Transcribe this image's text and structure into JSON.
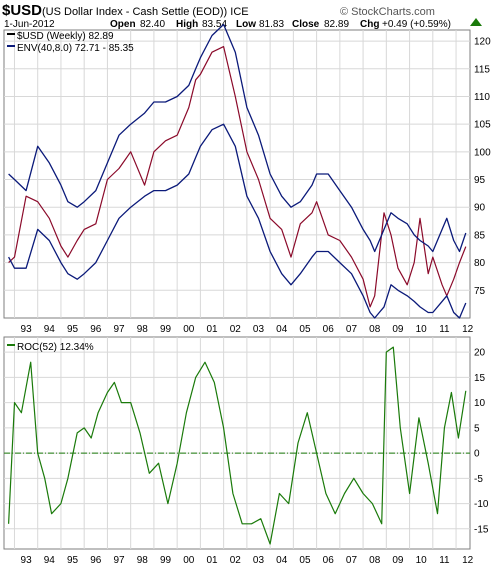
{
  "header": {
    "symbol": "$USD",
    "description": "(US Dollar Index - Cash Settle (EOD)) ICE",
    "watermark": "© StockCharts.com",
    "date": "1-Jun-2012",
    "open_label": "Open",
    "open_value": "82.40",
    "high_label": "High",
    "high_value": "83.54",
    "low_label": "Low",
    "low_value": "81.83",
    "close_label": "Close",
    "close_value": "82.89",
    "chg_label": "Chg",
    "chg_value": "+0.49 (+0.59%)"
  },
  "colors": {
    "price": "#8b0a2a",
    "envelope": "#0b1a7a",
    "roc": "#1a7a0a",
    "grid": "#d8d8d8",
    "border": "#7f7f7f",
    "zero_line": "#1a7a0a"
  },
  "chart_data": [
    {
      "type": "line",
      "title": "",
      "legend": [
        {
          "label": "$USD (Weekly) 82.89",
          "color": "#000000"
        },
        {
          "label": "ENV(40,8.0) 72.71 - 85.35",
          "color": "#0b1a7a"
        }
      ],
      "legend_placement": "top-left",
      "x_ticks": [
        "93",
        "94",
        "95",
        "96",
        "97",
        "98",
        "99",
        "00",
        "01",
        "02",
        "03",
        "04",
        "05",
        "06",
        "07",
        "08",
        "09",
        "10",
        "11",
        "12"
      ],
      "ylim": [
        70,
        122
      ],
      "y_ticks": [
        75,
        80,
        85,
        90,
        95,
        100,
        105,
        110,
        115,
        120
      ],
      "grid": true,
      "x_years": [
        1992.75,
        1993.0,
        1993.5,
        1994.0,
        1994.5,
        1995.0,
        1995.3,
        1995.7,
        1996.0,
        1996.5,
        1997.0,
        1997.5,
        1998.0,
        1998.6,
        1999.0,
        1999.5,
        2000.0,
        2000.5,
        2000.8,
        2001.0,
        2001.5,
        2002.0,
        2002.5,
        2003.0,
        2003.5,
        2004.0,
        2004.5,
        2004.9,
        2005.3,
        2005.8,
        2006.0,
        2006.5,
        2007.0,
        2007.5,
        2008.0,
        2008.3,
        2008.5,
        2008.9,
        2009.2,
        2009.5,
        2009.9,
        2010.2,
        2010.45,
        2010.8,
        2011.0,
        2011.4,
        2011.6,
        2011.9,
        2012.15,
        2012.42
      ],
      "series": [
        {
          "name": "$USD (Weekly)",
          "values": [
            80,
            81,
            92,
            91,
            88,
            83,
            81,
            84,
            86,
            87,
            95,
            97,
            100,
            94,
            100,
            102,
            103,
            108,
            113,
            114,
            118,
            119,
            110,
            100,
            95,
            88,
            86,
            81,
            87,
            89,
            91,
            85,
            84,
            81,
            77,
            72,
            74,
            89,
            85,
            79,
            76,
            80,
            88,
            78,
            81,
            76,
            74,
            77,
            80,
            82.89
          ]
        },
        {
          "name": "ENV upper",
          "values": [
            96,
            95,
            93,
            101,
            98,
            94,
            91,
            90,
            91,
            93,
            98,
            103,
            105,
            107,
            109,
            109,
            110,
            112,
            115,
            117,
            121,
            123,
            118,
            108,
            103,
            96,
            92,
            90,
            91,
            94,
            96,
            96,
            93,
            90,
            86,
            84,
            82,
            86,
            89,
            88,
            87,
            85,
            84,
            83,
            82,
            86,
            88,
            84,
            82,
            85.35
          ]
        },
        {
          "name": "ENV lower",
          "values": [
            81,
            79,
            79,
            86,
            84,
            80,
            78,
            77,
            78,
            80,
            84,
            88,
            90,
            92,
            93,
            93,
            94,
            96,
            99,
            101,
            104,
            105,
            101,
            92,
            88,
            82,
            78,
            76,
            78,
            81,
            82,
            82,
            80,
            78,
            74,
            71,
            70,
            72,
            76,
            75,
            74,
            73,
            72,
            71,
            71,
            73,
            74,
            71,
            70,
            72.71
          ]
        }
      ]
    },
    {
      "type": "line",
      "title": "",
      "legend": [
        {
          "label": "ROC(52) 12.34%",
          "color": "#1a7a0a"
        }
      ],
      "legend_placement": "top-left",
      "x_ticks": [
        "93",
        "94",
        "95",
        "96",
        "97",
        "98",
        "99",
        "00",
        "01",
        "02",
        "03",
        "04",
        "05",
        "06",
        "07",
        "08",
        "09",
        "10",
        "11",
        "12"
      ],
      "ylim": [
        -19,
        23
      ],
      "y_ticks": [
        -15,
        -10,
        -5,
        0,
        5,
        10,
        15,
        20
      ],
      "grid": true,
      "x_years": [
        1992.75,
        1993.0,
        1993.3,
        1993.7,
        1994.0,
        1994.3,
        1994.6,
        1995.0,
        1995.3,
        1995.7,
        1996.0,
        1996.3,
        1996.6,
        1997.0,
        1997.3,
        1997.6,
        1998.0,
        1998.4,
        1998.8,
        1999.2,
        1999.6,
        2000.0,
        2000.4,
        2000.8,
        2001.2,
        2001.6,
        2002.0,
        2002.4,
        2002.8,
        2003.2,
        2003.6,
        2004.0,
        2004.4,
        2004.8,
        2005.2,
        2005.6,
        2006.0,
        2006.4,
        2006.8,
        2007.2,
        2007.6,
        2008.0,
        2008.4,
        2008.8,
        2009.0,
        2009.3,
        2009.6,
        2010.0,
        2010.4,
        2010.8,
        2011.2,
        2011.5,
        2011.8,
        2012.1,
        2012.42
      ],
      "series": [
        {
          "name": "ROC(52)",
          "values": [
            -14,
            10,
            8,
            18,
            0,
            -5,
            -12,
            -10,
            -5,
            4,
            5,
            3,
            8,
            12,
            14,
            10,
            10,
            4,
            -4,
            -2,
            -10,
            -2,
            8,
            15,
            18,
            14,
            5,
            -8,
            -14,
            -14,
            -13,
            -18,
            -8,
            -10,
            2,
            8,
            0,
            -8,
            -12,
            -8,
            -5,
            -8,
            -10,
            -14,
            20,
            21,
            5,
            -8,
            7,
            -2,
            -12,
            5,
            12,
            3,
            12.34
          ]
        }
      ]
    }
  ]
}
